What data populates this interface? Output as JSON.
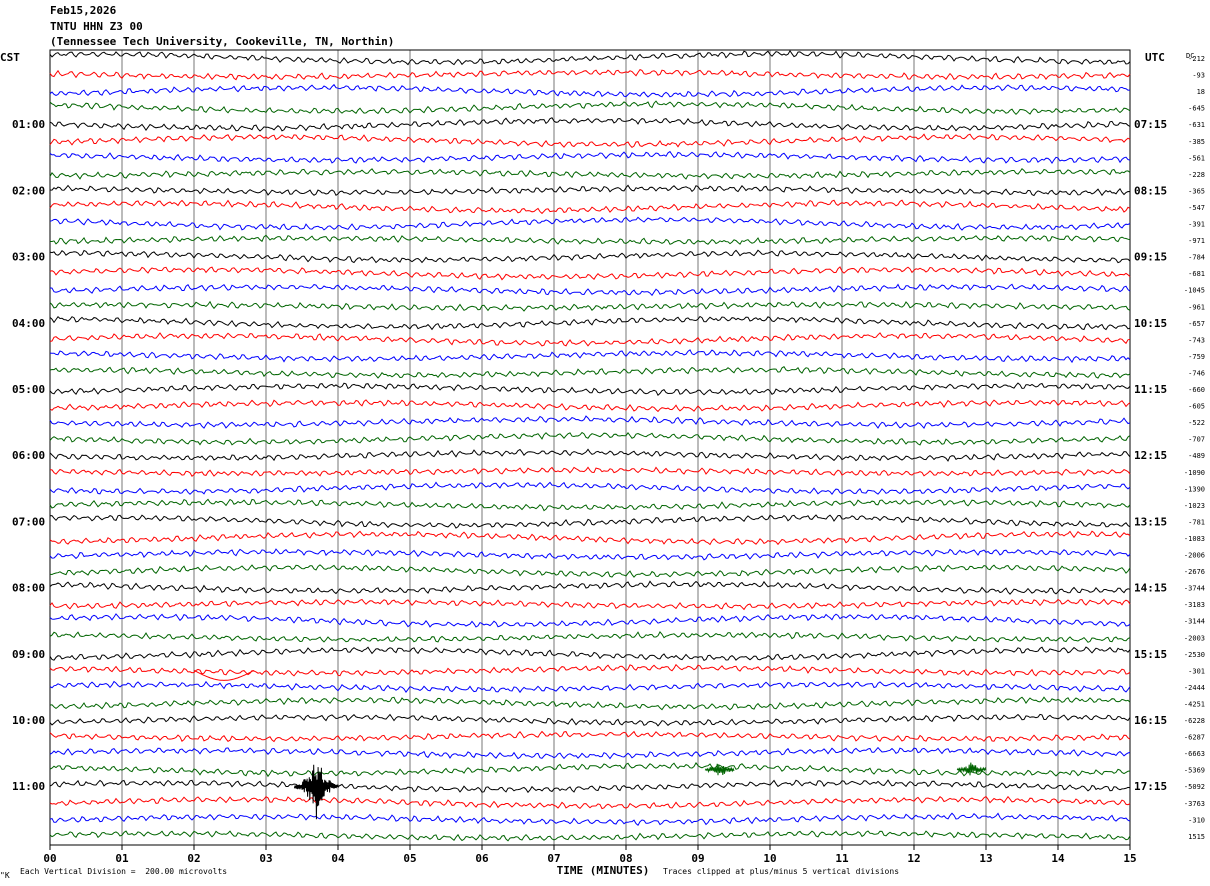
{
  "header": {
    "date": "Feb15,2026",
    "station": "TNTU HHN Z3 00",
    "location": "(Tennessee Tech University, Cookeville, TN, Northin)"
  },
  "axes": {
    "left_label": "CST",
    "right_label": "UTC",
    "dc_label": "DC",
    "xlabel": "TIME (MINUTES)",
    "x_ticks": [
      "00",
      "01",
      "02",
      "03",
      "04",
      "05",
      "06",
      "07",
      "08",
      "09",
      "10",
      "11",
      "12",
      "13",
      "14",
      "15"
    ],
    "left_hours": [
      "01:00",
      "02:00",
      "03:00",
      "04:00",
      "05:00",
      "06:00",
      "07:00",
      "08:00",
      "09:00",
      "10:00",
      "11:00"
    ],
    "right_hours": [
      "07:15",
      "08:15",
      "09:15",
      "10:15",
      "11:15",
      "12:15",
      "13:15",
      "14:15",
      "15:15",
      "16:15",
      "17:15"
    ]
  },
  "footer": {
    "scale": "Each Vertical Division =  200.00 microvolts",
    "clip": "Traces clipped at plus/minus 5 vertical divisions",
    "mark": "\"K"
  },
  "chart_data": {
    "type": "line",
    "title": "TNTU HHN Z3 00",
    "xlabel": "TIME (MINUTES)",
    "xlim": [
      0,
      15
    ],
    "grid": true,
    "trace_colors": [
      "#000000",
      "#ff0000",
      "#0000ff",
      "#006400"
    ],
    "trace_minutes": 15,
    "dc_offsets": [
      -212,
      -93,
      18,
      -645,
      -631,
      -385,
      -561,
      -228,
      -365,
      -547,
      -391,
      -971,
      -784,
      -681,
      -1045,
      -961,
      -657,
      -743,
      -759,
      -746,
      -660,
      -605,
      -522,
      -707,
      -489,
      -1090,
      -1390,
      -1023,
      -781,
      -1083,
      -2006,
      -2676,
      -3744,
      -3183,
      -3144,
      -2003,
      -2530,
      -301,
      -2444,
      -4251,
      -6228,
      -6287,
      -6663,
      -5369,
      -5092,
      -3763,
      -310,
      1515
    ],
    "events": [
      {
        "trace": 43,
        "minute": 9.3,
        "label": "small burst"
      },
      {
        "trace": 43,
        "minute": 12.8,
        "label": "small burst"
      },
      {
        "trace": 44,
        "minute": 3.7,
        "label": "large event"
      },
      {
        "trace": 37,
        "minute": 2.0,
        "label": "offset"
      }
    ]
  }
}
